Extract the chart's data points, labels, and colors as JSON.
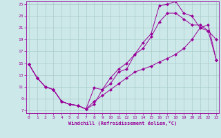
{
  "xlabel": "Windchill (Refroidissement éolien,°C)",
  "background_color": "#cce8e8",
  "grid_color": "#aacccc",
  "line_color": "#990099",
  "xlim": [
    0,
    23
  ],
  "ylim": [
    7,
    25
  ],
  "xticks": [
    0,
    1,
    2,
    3,
    4,
    5,
    6,
    7,
    8,
    9,
    10,
    11,
    12,
    13,
    14,
    15,
    16,
    17,
    18,
    19,
    20,
    21,
    22,
    23
  ],
  "yticks": [
    7,
    9,
    11,
    13,
    15,
    17,
    19,
    21,
    23,
    25
  ],
  "line1_x": [
    0,
    1,
    2,
    3,
    4,
    5,
    6,
    7,
    8,
    9,
    10,
    11,
    12,
    13,
    14,
    15,
    16,
    17,
    18,
    19,
    20,
    21,
    22,
    23
  ],
  "line1_y": [
    14.8,
    12.5,
    11.0,
    10.5,
    8.5,
    8.0,
    7.8,
    7.2,
    10.8,
    10.5,
    11.5,
    13.5,
    14.0,
    16.5,
    18.5,
    20.0,
    24.8,
    25.0,
    25.5,
    23.5,
    23.0,
    21.0,
    20.5,
    19.0
  ],
  "line2_x": [
    0,
    1,
    2,
    3,
    4,
    5,
    6,
    7,
    8,
    9,
    10,
    11,
    12,
    13,
    14,
    15,
    16,
    17,
    18,
    19,
    20,
    21,
    22,
    23
  ],
  "line2_y": [
    14.8,
    12.5,
    11.0,
    10.5,
    8.5,
    8.0,
    7.8,
    7.2,
    8.0,
    10.5,
    12.5,
    14.0,
    15.0,
    16.5,
    17.5,
    19.5,
    22.0,
    23.5,
    23.5,
    22.5,
    21.5,
    21.5,
    20.5,
    15.5
  ],
  "line3_x": [
    0,
    1,
    2,
    3,
    4,
    5,
    6,
    7,
    8,
    9,
    10,
    11,
    12,
    13,
    14,
    15,
    16,
    17,
    18,
    19,
    20,
    21,
    22,
    23
  ],
  "line3_y": [
    14.8,
    12.5,
    11.0,
    10.5,
    8.5,
    8.0,
    7.8,
    7.2,
    8.5,
    9.5,
    10.5,
    11.5,
    12.5,
    13.5,
    14.0,
    14.5,
    15.2,
    15.8,
    16.5,
    17.5,
    19.0,
    21.0,
    21.5,
    15.5
  ]
}
